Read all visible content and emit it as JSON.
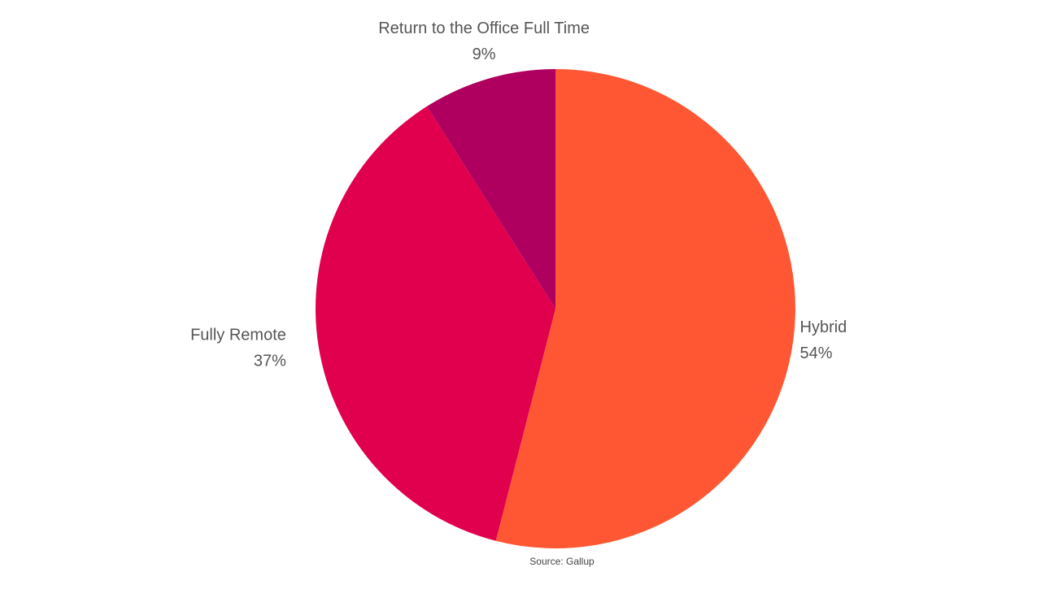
{
  "chart_data": {
    "type": "pie",
    "categories": [
      "Hybrid",
      "Fully Remote",
      "Return to the Office Full Time"
    ],
    "values": [
      54,
      37,
      9
    ],
    "value_labels": [
      "54%",
      "37%",
      "9%"
    ],
    "colors": [
      "#ff5733",
      "#e0004d",
      "#b0005f"
    ],
    "annotation": "Source: Gallup"
  }
}
